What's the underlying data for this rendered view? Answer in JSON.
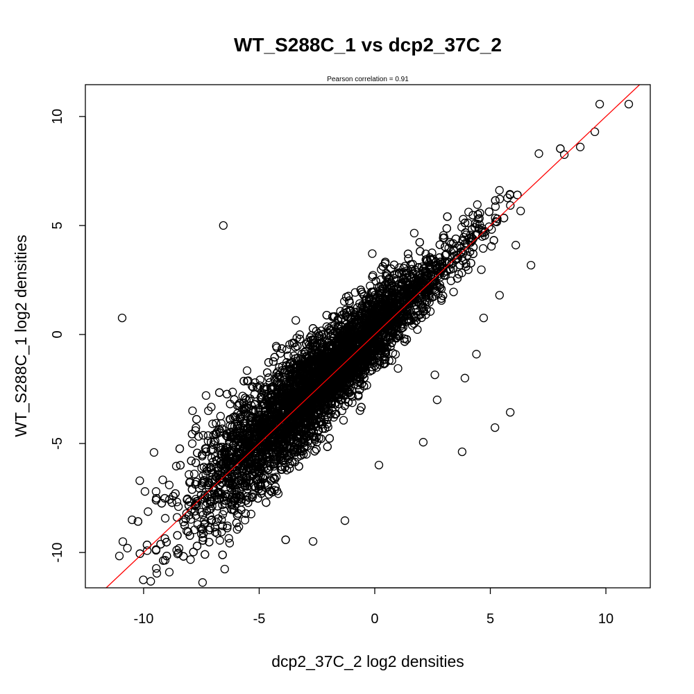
{
  "chart_data": {
    "type": "scatter",
    "title": "WT_S288C_1 vs dcp2_37C_2",
    "subtitle": "Pearson correlation =  0.91",
    "xlabel": "dcp2_37C_2 log2 densities",
    "ylabel": "WT_S288C_1 log2 densities",
    "xlim": [
      -12.52,
      11.92
    ],
    "ylim": [
      -11.62,
      11.46
    ],
    "xticks": [
      -10,
      -5,
      0,
      5,
      10
    ],
    "yticks": [
      -10,
      -5,
      0,
      5,
      10
    ],
    "xtick_labels": [
      "-10",
      "-5",
      "0",
      "5",
      "10"
    ],
    "ytick_labels": [
      "-10",
      "-5",
      "0",
      "5",
      "10"
    ],
    "grid": false,
    "reference_line": {
      "intercept": 0,
      "slope": 1,
      "color": "#ff0000"
    },
    "point_color": "#000000",
    "cloud": {
      "n": 6000,
      "seed": 7,
      "x_mean": -2.3,
      "x_sd": 2.7,
      "x_min": -10.6,
      "x_max": 8.3,
      "y_offset": 0.2,
      "sd_base": 0.35,
      "sd_slope": 0.07
    },
    "points": [
      [
        -6.55,
        5.0
      ],
      [
        -10.93,
        0.76
      ],
      [
        9.73,
        10.57
      ],
      [
        10.99,
        10.57
      ],
      [
        6.76,
        3.18
      ],
      [
        5.86,
        -3.57
      ],
      [
        5.2,
        -4.27
      ],
      [
        3.78,
        -5.38
      ],
      [
        3.9,
        -2.0
      ],
      [
        4.71,
        0.76
      ],
      [
        2.1,
        -4.94
      ],
      [
        -6.49,
        -10.76
      ],
      [
        -11.05,
        -10.16
      ],
      [
        1.71,
        4.65
      ],
      [
        9.52,
        9.3
      ],
      [
        8.89,
        8.6
      ],
      [
        -1.23,
        1.72
      ],
      [
        -9.46,
        -7.2
      ],
      [
        -9.94,
        -7.2
      ],
      [
        -9.55,
        -5.41
      ],
      [
        -2.67,
        -9.49
      ],
      [
        -1.29,
        -8.54
      ],
      [
        0.18,
        -5.99
      ],
      [
        2.7,
        -3.0
      ],
      [
        2.6,
        -1.85
      ],
      [
        -10.5,
        -8.5
      ],
      [
        -10.9,
        -9.5
      ],
      [
        -10.7,
        -9.8
      ],
      [
        -7.3,
        -2.8
      ],
      [
        -7.2,
        -3.5
      ],
      [
        6.1,
        4.1
      ],
      [
        5.4,
        1.8
      ],
      [
        4.4,
        -0.9
      ],
      [
        8.2,
        8.25
      ],
      [
        7.1,
        8.3
      ]
    ]
  }
}
